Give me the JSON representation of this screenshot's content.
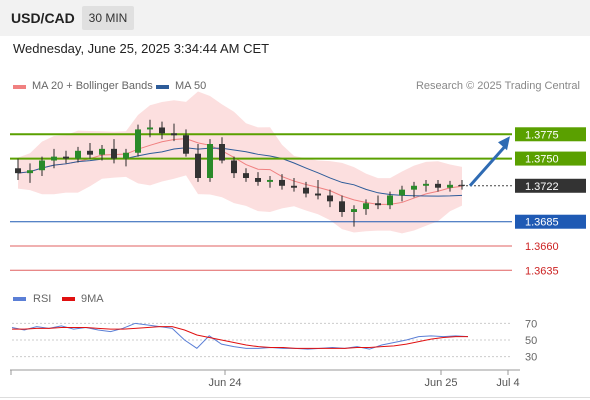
{
  "header": {
    "pair": "USD/CAD",
    "timeframe": "30 MIN"
  },
  "datetime": "Wednesday, June 25, 2025 3:34:44 AM CET",
  "legend": {
    "ma20": "MA 20 + Bollinger Bands",
    "ma50": "MA 50",
    "ma20_color": "#f08080",
    "ma50_color": "#2e5c99"
  },
  "research_label": "Research © 2025 Trading Central",
  "rsi_legend": {
    "rsi": "RSI",
    "ma9": "9MA",
    "rsi_color": "#5b7fd6",
    "ma9_color": "#e01010"
  },
  "colors": {
    "resistance": "#5aa000",
    "support": "#1f5ab4",
    "support2": "#e06060",
    "bollinger": "#fbd9d9",
    "candle": "#2a8a2a",
    "arrow": "#2f6bb3"
  },
  "chart_data": {
    "type": "candlestick",
    "x_labels": [
      "Jun 24",
      "Jun 25",
      "Jul 4"
    ],
    "price_levels": [
      {
        "value": "1.3775",
        "kind": "resistance"
      },
      {
        "value": "1.3750",
        "kind": "resistance"
      },
      {
        "value": "1.3722",
        "kind": "current"
      },
      {
        "value": "1.3685",
        "kind": "support"
      },
      {
        "value": "1.3660",
        "kind": "support2"
      },
      {
        "value": "1.3635",
        "kind": "support2"
      }
    ],
    "price_range": [
      1.3625,
      1.38
    ],
    "price_series": [
      {
        "t": 0,
        "o": 1.374,
        "h": 1.375,
        "l": 1.3728,
        "c": 1.3735
      },
      {
        "t": 1,
        "o": 1.3735,
        "h": 1.3745,
        "l": 1.3725,
        "c": 1.3738
      },
      {
        "t": 2,
        "o": 1.3738,
        "h": 1.3752,
        "l": 1.3732,
        "c": 1.3748
      },
      {
        "t": 3,
        "o": 1.3748,
        "h": 1.376,
        "l": 1.374,
        "c": 1.3752
      },
      {
        "t": 4,
        "o": 1.3752,
        "h": 1.3758,
        "l": 1.3745,
        "c": 1.375
      },
      {
        "t": 5,
        "o": 1.375,
        "h": 1.3762,
        "l": 1.3746,
        "c": 1.3758
      },
      {
        "t": 6,
        "o": 1.3758,
        "h": 1.3766,
        "l": 1.375,
        "c": 1.3754
      },
      {
        "t": 7,
        "o": 1.3754,
        "h": 1.3764,
        "l": 1.3748,
        "c": 1.376
      },
      {
        "t": 8,
        "o": 1.376,
        "h": 1.377,
        "l": 1.3745,
        "c": 1.375
      },
      {
        "t": 9,
        "o": 1.375,
        "h": 1.376,
        "l": 1.3742,
        "c": 1.3756
      },
      {
        "t": 10,
        "o": 1.3756,
        "h": 1.3785,
        "l": 1.3752,
        "c": 1.378
      },
      {
        "t": 11,
        "o": 1.378,
        "h": 1.379,
        "l": 1.3772,
        "c": 1.3782
      },
      {
        "t": 12,
        "o": 1.3782,
        "h": 1.3788,
        "l": 1.377,
        "c": 1.3776
      },
      {
        "t": 13,
        "o": 1.3776,
        "h": 1.3786,
        "l": 1.3768,
        "c": 1.3774
      },
      {
        "t": 14,
        "o": 1.3774,
        "h": 1.378,
        "l": 1.3752,
        "c": 1.3755
      },
      {
        "t": 15,
        "o": 1.3755,
        "h": 1.3765,
        "l": 1.3726,
        "c": 1.373
      },
      {
        "t": 16,
        "o": 1.373,
        "h": 1.377,
        "l": 1.3726,
        "c": 1.3765
      },
      {
        "t": 17,
        "o": 1.3765,
        "h": 1.3772,
        "l": 1.3745,
        "c": 1.3748
      },
      {
        "t": 18,
        "o": 1.3748,
        "h": 1.3752,
        "l": 1.373,
        "c": 1.3735
      },
      {
        "t": 19,
        "o": 1.3735,
        "h": 1.374,
        "l": 1.3726,
        "c": 1.373
      },
      {
        "t": 20,
        "o": 1.373,
        "h": 1.3736,
        "l": 1.3722,
        "c": 1.3726
      },
      {
        "t": 21,
        "o": 1.3726,
        "h": 1.3732,
        "l": 1.372,
        "c": 1.3728
      },
      {
        "t": 22,
        "o": 1.3728,
        "h": 1.3734,
        "l": 1.3718,
        "c": 1.3722
      },
      {
        "t": 23,
        "o": 1.3722,
        "h": 1.373,
        "l": 1.3716,
        "c": 1.372
      },
      {
        "t": 24,
        "o": 1.372,
        "h": 1.3726,
        "l": 1.371,
        "c": 1.3714
      },
      {
        "t": 25,
        "o": 1.3714,
        "h": 1.3728,
        "l": 1.3708,
        "c": 1.3712
      },
      {
        "t": 26,
        "o": 1.3712,
        "h": 1.3718,
        "l": 1.37,
        "c": 1.3706
      },
      {
        "t": 27,
        "o": 1.3706,
        "h": 1.3712,
        "l": 1.369,
        "c": 1.3695
      },
      {
        "t": 28,
        "o": 1.3695,
        "h": 1.3702,
        "l": 1.368,
        "c": 1.3698
      },
      {
        "t": 29,
        "o": 1.3698,
        "h": 1.3708,
        "l": 1.3692,
        "c": 1.3704
      },
      {
        "t": 30,
        "o": 1.3704,
        "h": 1.3712,
        "l": 1.3698,
        "c": 1.3702
      },
      {
        "t": 31,
        "o": 1.3702,
        "h": 1.3716,
        "l": 1.3698,
        "c": 1.3712
      },
      {
        "t": 32,
        "o": 1.3712,
        "h": 1.3722,
        "l": 1.3706,
        "c": 1.3718
      },
      {
        "t": 33,
        "o": 1.3718,
        "h": 1.3726,
        "l": 1.371,
        "c": 1.3722
      },
      {
        "t": 34,
        "o": 1.3722,
        "h": 1.3728,
        "l": 1.3716,
        "c": 1.3724
      },
      {
        "t": 35,
        "o": 1.3724,
        "h": 1.3728,
        "l": 1.3716,
        "c": 1.372
      },
      {
        "t": 36,
        "o": 1.372,
        "h": 1.3727,
        "l": 1.3716,
        "c": 1.3723
      },
      {
        "t": 37,
        "o": 1.3723,
        "h": 1.3728,
        "l": 1.3718,
        "c": 1.3722
      }
    ],
    "rsi_axis_labels": [
      "70",
      "50",
      "30"
    ],
    "rsi_range": [
      20,
      80
    ],
    "rsi_series": [
      65,
      62,
      66,
      64,
      67,
      63,
      65,
      62,
      60,
      64,
      70,
      68,
      66,
      64,
      50,
      40,
      55,
      45,
      42,
      40,
      40,
      41,
      40,
      40,
      39,
      40,
      41,
      40,
      42,
      39,
      44,
      47,
      50,
      54,
      55,
      54,
      55,
      54
    ],
    "ma9_series": [
      63,
      63,
      64,
      64,
      65,
      65,
      65,
      64,
      63,
      63,
      64,
      65,
      66,
      66,
      62,
      56,
      53,
      50,
      47,
      44,
      42,
      41,
      41,
      40,
      40,
      40,
      40,
      40,
      41,
      41,
      42,
      43,
      45,
      48,
      51,
      53,
      54,
      54
    ]
  }
}
